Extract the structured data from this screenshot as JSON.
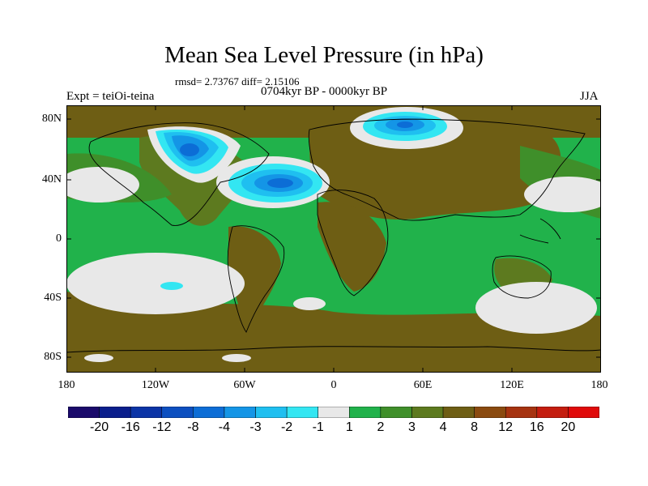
{
  "title": "Mean Sea Level Pressure (in hPa)",
  "stats": "rmsd= 2.73767  diff= 2.15106",
  "subtitle": "0704kyr BP - 0000kyr BP",
  "experiment": "Expt = teiOi-teina",
  "season": "JJA",
  "lat_ticks": [
    "80N",
    "40N",
    "0",
    "40S",
    "80S"
  ],
  "lon_ticks": [
    "180",
    "120W",
    "60W",
    "0",
    "60E",
    "120E",
    "180"
  ],
  "colorbar": {
    "colors": [
      "#1a0a6b",
      "#0a1e8c",
      "#0b34a6",
      "#0c4fc0",
      "#0c6dd6",
      "#1495e6",
      "#1fbff0",
      "#33e6f2",
      "#e8e8e8",
      "#21b24b",
      "#3f8f2a",
      "#5d7a1f",
      "#6e5e14",
      "#8a4a0f",
      "#a63310",
      "#c41d0f",
      "#e00a0a"
    ],
    "labels": [
      "-20",
      "-16",
      "-12",
      "-8",
      "-4",
      "-3",
      "-2",
      "-1",
      "1",
      "2",
      "3",
      "4",
      "8",
      "12",
      "16",
      "20"
    ]
  }
}
